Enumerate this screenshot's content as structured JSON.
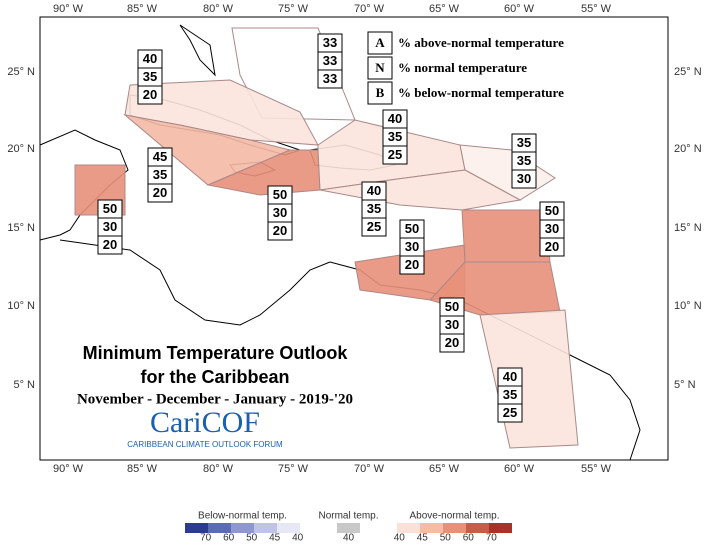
{
  "title": [
    "Minimum Temperature Outlook",
    "for the Caribbean"
  ],
  "subtitle": "November - December - January - 2019-'20",
  "logo": {
    "name": "CariCOF",
    "tagline": "CARIBBEAN CLIMATE OUTLOOK FORUM"
  },
  "key": [
    {
      "letter": "A",
      "text": "% above-normal temperature"
    },
    {
      "letter": "N",
      "text": "% normal temperature"
    },
    {
      "letter": "B",
      "text": "% below-normal temperature"
    }
  ],
  "lon_ticks": [
    "90° W",
    "85° W",
    "80° W",
    "75° W",
    "70° W",
    "65° W",
    "60° W",
    "55° W"
  ],
  "lat_ticks": [
    "25° N",
    "20° N",
    "15° N",
    "10° N",
    "5° N"
  ],
  "regions": [
    {
      "values": [
        33,
        33,
        33
      ],
      "color": "#ffffff"
    },
    {
      "values": [
        40,
        35,
        20
      ],
      "color": "#fbe4dc"
    },
    {
      "values": [
        45,
        35,
        20
      ],
      "color": "#f4b9a5"
    },
    {
      "values": [
        50,
        30,
        20
      ],
      "color": "#e8907a"
    },
    {
      "values": [
        50,
        30,
        20
      ],
      "color": "#e8907a"
    },
    {
      "values": [
        40,
        35,
        25
      ],
      "color": "#fbe4dc"
    },
    {
      "values": [
        35,
        35,
        30
      ],
      "color": "#fdf0eb"
    },
    {
      "values": [
        40,
        35,
        25
      ],
      "color": "#fbe4dc"
    },
    {
      "values": [
        50,
        30,
        20
      ],
      "color": "#e8907a"
    },
    {
      "values": [
        50,
        30,
        20
      ],
      "color": "#e8907a"
    },
    {
      "values": [
        50,
        30,
        20
      ],
      "color": "#e8907a"
    },
    {
      "values": [
        40,
        35,
        25
      ],
      "color": "#fbe4dc"
    }
  ],
  "colorbar": [
    {
      "label": "Below-normal temp.",
      "ticks": [
        70,
        60,
        50,
        45,
        40
      ],
      "colors": [
        "#2c3b8f",
        "#5b6cb5",
        "#8e97cf",
        "#bfc3e6",
        "#e6e8f6"
      ]
    },
    {
      "label": "Normal temp.",
      "ticks": [
        40
      ],
      "colors": [
        "#c8c8c8"
      ]
    },
    {
      "label": "Above-normal temp.",
      "ticks": [
        40,
        45,
        50,
        60,
        70
      ],
      "colors": [
        "#fbe1d8",
        "#f5bba5",
        "#e8907a",
        "#c75c48",
        "#a8322a"
      ]
    }
  ]
}
